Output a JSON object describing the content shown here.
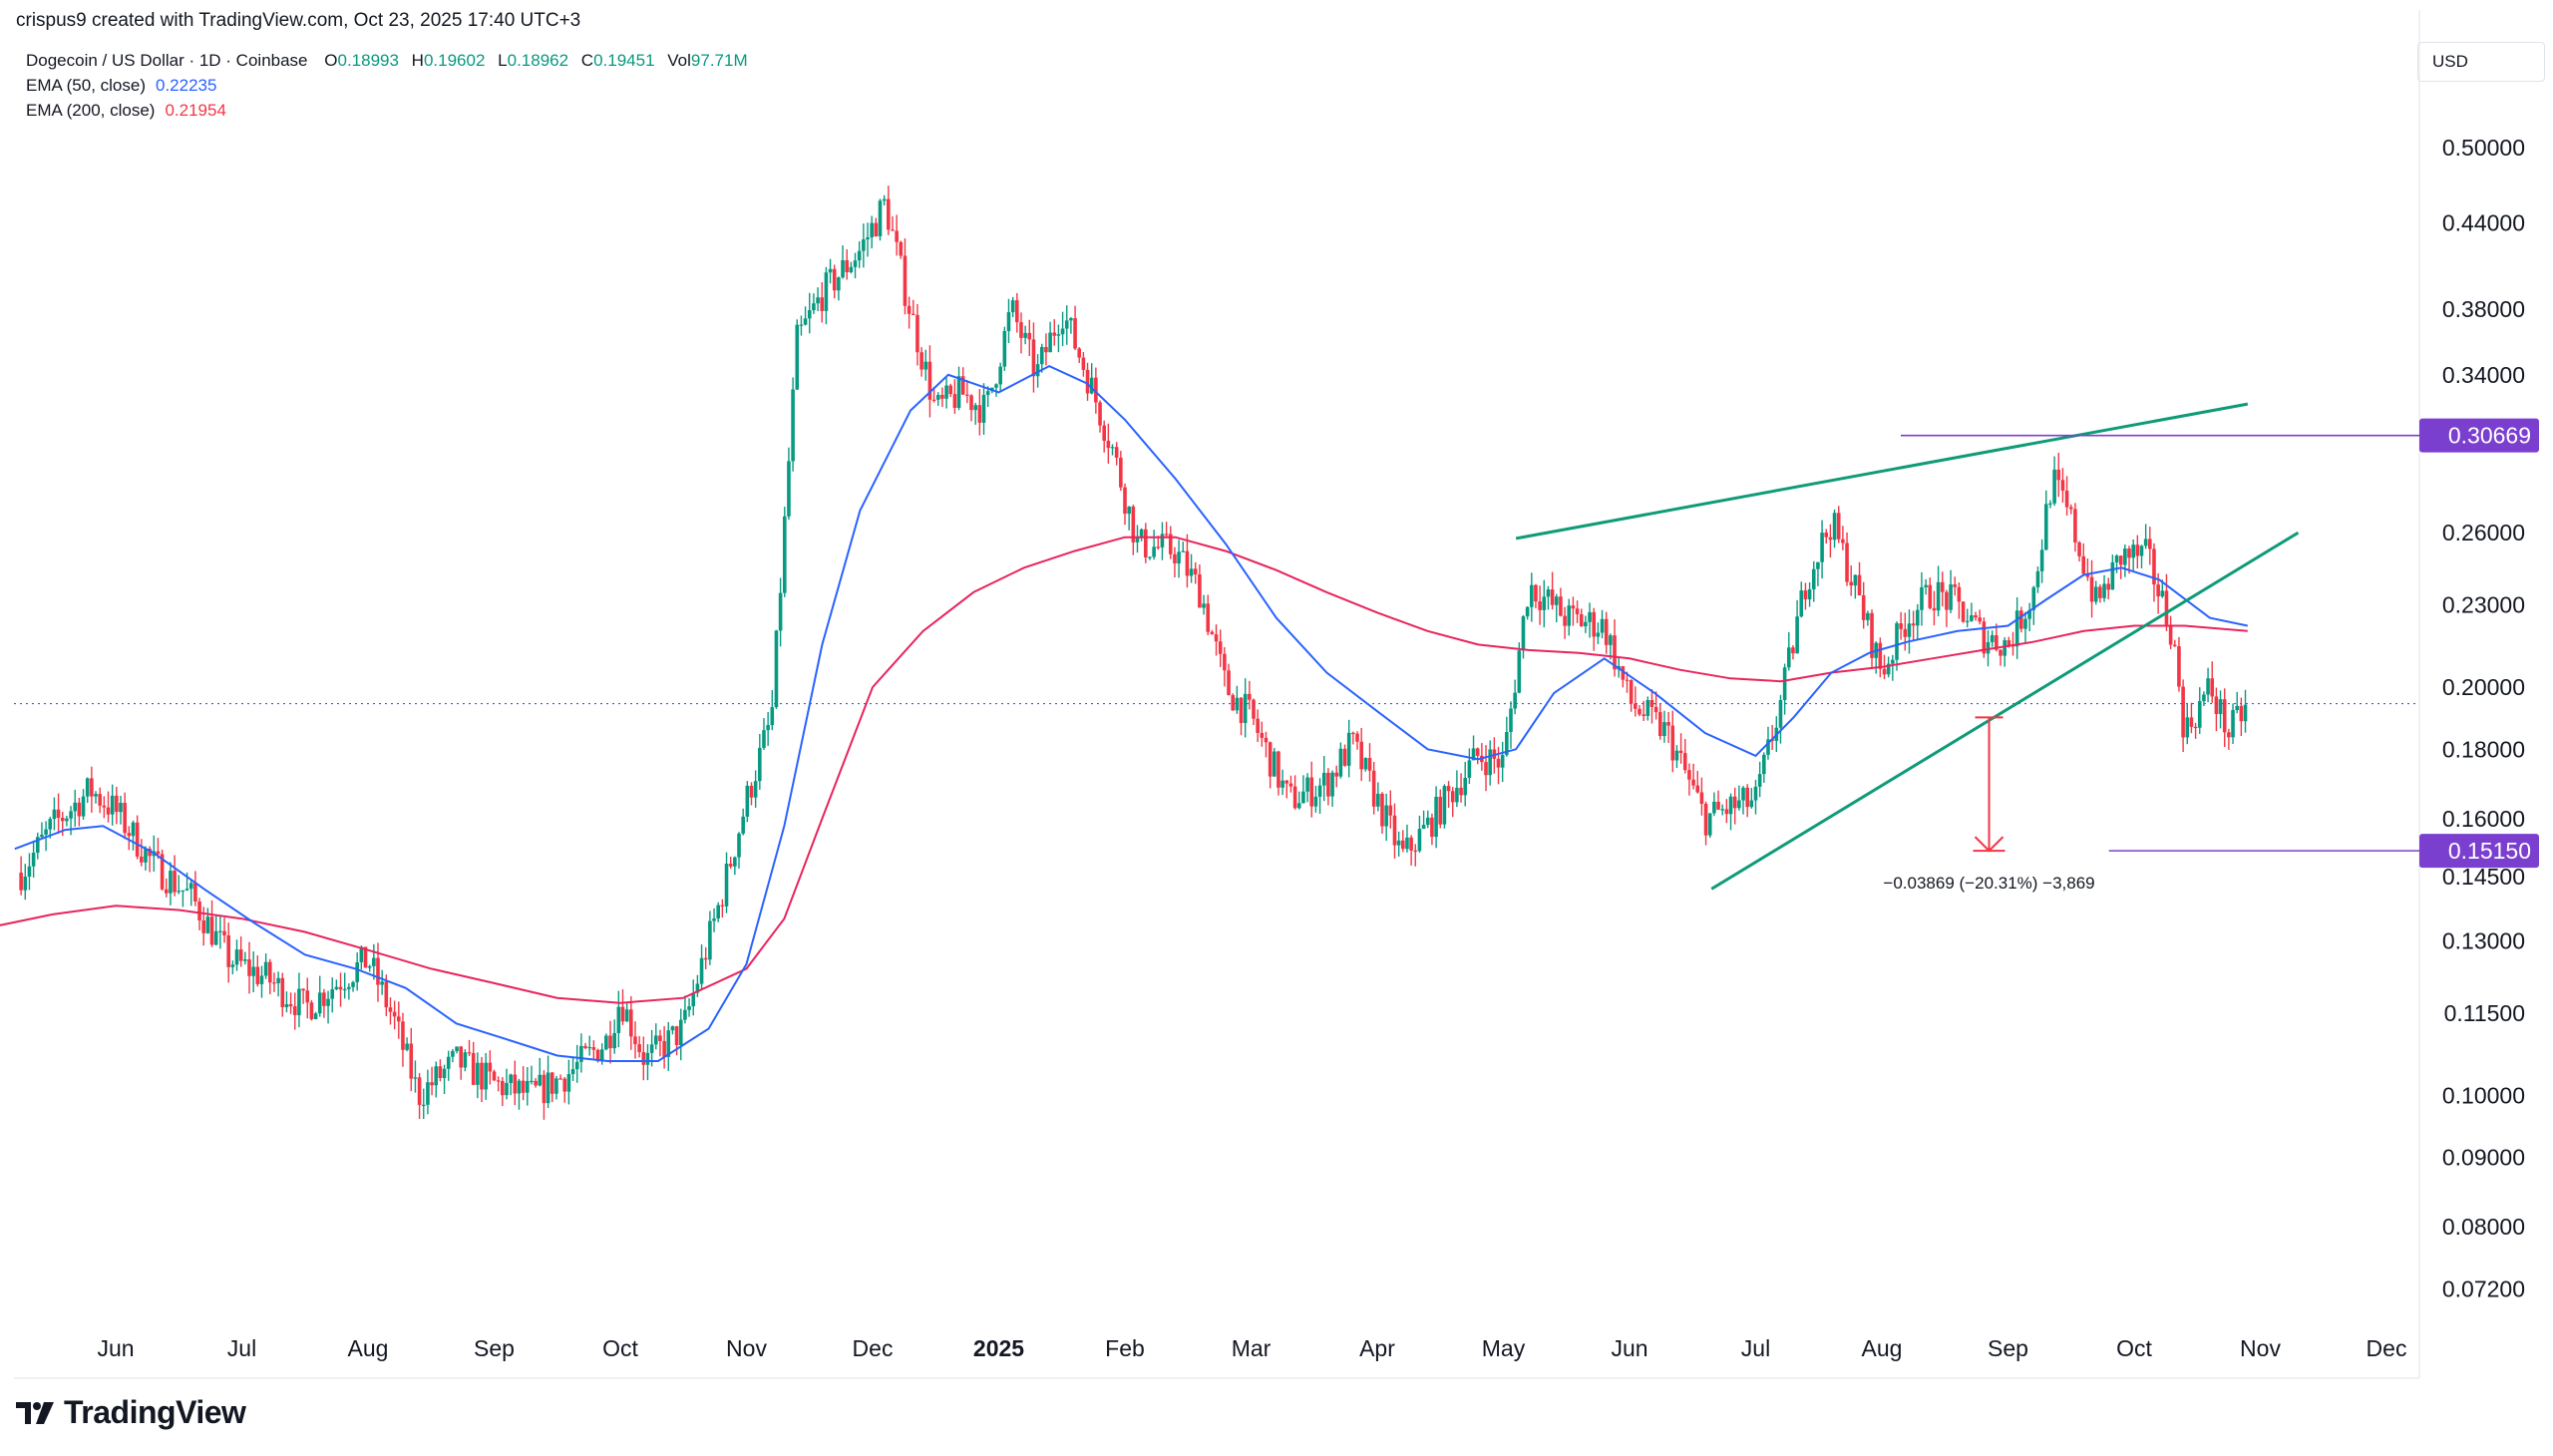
{
  "header": {
    "credit": "crispus9 created with TradingView.com, Oct 23, 2025 17:40 UTC+3"
  },
  "legend": {
    "symbol": "Dogecoin / US Dollar · 1D · Coinbase",
    "open_label": "O",
    "open": "0.18993",
    "high_label": "H",
    "high": "0.19602",
    "low_label": "L",
    "low": "0.18962",
    "close_label": "C",
    "close": "0.19451",
    "vol_label": "Vol",
    "vol": "97.71M",
    "ema50_label": "EMA (50, close)",
    "ema50_value": "0.22235",
    "ema200_label": "EMA (200, close)",
    "ema200_value": "0.21954"
  },
  "currency": "USD",
  "footer": {
    "brand": "TradingView"
  },
  "colors": {
    "up": "#089981",
    "down": "#f23645",
    "ema50": "#2962ff",
    "ema200": "#e8245c",
    "channel": "#0f9a78",
    "tag": "#7b3fcf",
    "measure": "#f23645"
  },
  "chart_data": {
    "type": "candlestick",
    "title": "Dogecoin / US Dollar · 1D · Coinbase",
    "y_scale": "log",
    "ylim": [
      0.066,
      0.55
    ],
    "y_ticks": [
      "0.50000",
      "0.44000",
      "0.38000",
      "0.34000",
      "0.26000",
      "0.23000",
      "0.20000",
      "0.18000",
      "0.16000",
      "0.14500",
      "0.13000",
      "0.11500",
      "0.10000",
      "0.09000",
      "0.08000",
      "0.07200"
    ],
    "x_ticks": [
      {
        "label": "Jun",
        "t": 2
      },
      {
        "label": "Jul",
        "t": 3
      },
      {
        "label": "Aug",
        "t": 4
      },
      {
        "label": "Sep",
        "t": 5
      },
      {
        "label": "Oct",
        "t": 6
      },
      {
        "label": "Nov",
        "t": 7
      },
      {
        "label": "Dec",
        "t": 8
      },
      {
        "label": "2025",
        "t": 9,
        "bold": true
      },
      {
        "label": "Feb",
        "t": 10
      },
      {
        "label": "Mar",
        "t": 11
      },
      {
        "label": "Apr",
        "t": 12
      },
      {
        "label": "May",
        "t": 13
      },
      {
        "label": "Jun",
        "t": 14
      },
      {
        "label": "Jul",
        "t": 15
      },
      {
        "label": "Aug",
        "t": 16
      },
      {
        "label": "Sep",
        "t": 17
      },
      {
        "label": "Oct",
        "t": 18
      },
      {
        "label": "Nov",
        "t": 19
      },
      {
        "label": "Dec",
        "t": 20
      }
    ],
    "close_anchors": [
      [
        1.25,
        0.146
      ],
      [
        1.5,
        0.158
      ],
      [
        1.8,
        0.168
      ],
      [
        2.0,
        0.162
      ],
      [
        2.3,
        0.148
      ],
      [
        2.6,
        0.14
      ],
      [
        2.9,
        0.126
      ],
      [
        3.2,
        0.122
      ],
      [
        3.5,
        0.116
      ],
      [
        3.8,
        0.122
      ],
      [
        4.0,
        0.126
      ],
      [
        4.2,
        0.114
      ],
      [
        4.4,
        0.1
      ],
      [
        4.7,
        0.106
      ],
      [
        5.0,
        0.102
      ],
      [
        5.3,
        0.1
      ],
      [
        5.6,
        0.104
      ],
      [
        5.9,
        0.11
      ],
      [
        6.0,
        0.118
      ],
      [
        6.2,
        0.106
      ],
      [
        6.5,
        0.112
      ],
      [
        6.8,
        0.14
      ],
      [
        7.0,
        0.165
      ],
      [
        7.2,
        0.19
      ],
      [
        7.4,
        0.36
      ],
      [
        7.6,
        0.39
      ],
      [
        7.9,
        0.42
      ],
      [
        8.1,
        0.455
      ],
      [
        8.25,
        0.395
      ],
      [
        8.5,
        0.32
      ],
      [
        8.7,
        0.33
      ],
      [
        8.9,
        0.32
      ],
      [
        9.1,
        0.38
      ],
      [
        9.3,
        0.34
      ],
      [
        9.5,
        0.38
      ],
      [
        9.7,
        0.34
      ],
      [
        9.9,
        0.3
      ],
      [
        10.1,
        0.255
      ],
      [
        10.4,
        0.252
      ],
      [
        10.6,
        0.235
      ],
      [
        10.8,
        0.2
      ],
      [
        11.0,
        0.19
      ],
      [
        11.3,
        0.165
      ],
      [
        11.6,
        0.17
      ],
      [
        11.8,
        0.182
      ],
      [
        12.0,
        0.165
      ],
      [
        12.2,
        0.15
      ],
      [
        12.4,
        0.158
      ],
      [
        12.6,
        0.168
      ],
      [
        12.8,
        0.178
      ],
      [
        13.0,
        0.176
      ],
      [
        13.2,
        0.238
      ],
      [
        13.5,
        0.225
      ],
      [
        13.8,
        0.222
      ],
      [
        14.0,
        0.195
      ],
      [
        14.3,
        0.185
      ],
      [
        14.6,
        0.16
      ],
      [
        14.8,
        0.163
      ],
      [
        15.0,
        0.165
      ],
      [
        15.2,
        0.195
      ],
      [
        15.4,
        0.24
      ],
      [
        15.6,
        0.265
      ],
      [
        15.8,
        0.235
      ],
      [
        16.0,
        0.205
      ],
      [
        16.2,
        0.225
      ],
      [
        16.4,
        0.235
      ],
      [
        16.6,
        0.23
      ],
      [
        16.8,
        0.218
      ],
      [
        17.0,
        0.215
      ],
      [
        17.2,
        0.235
      ],
      [
        17.35,
        0.285
      ],
      [
        17.5,
        0.265
      ],
      [
        17.7,
        0.23
      ],
      [
        17.9,
        0.25
      ],
      [
        18.1,
        0.25
      ],
      [
        18.3,
        0.22
      ],
      [
        18.4,
        0.185
      ],
      [
        18.6,
        0.2
      ],
      [
        18.75,
        0.185
      ],
      [
        18.9,
        0.194
      ]
    ],
    "ema50": [
      [
        1.2,
        0.152
      ],
      [
        1.6,
        0.157
      ],
      [
        1.9,
        0.158
      ],
      [
        2.3,
        0.151
      ],
      [
        2.7,
        0.142
      ],
      [
        3.1,
        0.134
      ],
      [
        3.5,
        0.127
      ],
      [
        3.9,
        0.124
      ],
      [
        4.3,
        0.12
      ],
      [
        4.7,
        0.113
      ],
      [
        5.1,
        0.11
      ],
      [
        5.5,
        0.107
      ],
      [
        5.9,
        0.106
      ],
      [
        6.3,
        0.106
      ],
      [
        6.7,
        0.112
      ],
      [
        7.0,
        0.125
      ],
      [
        7.3,
        0.158
      ],
      [
        7.6,
        0.215
      ],
      [
        7.9,
        0.27
      ],
      [
        8.3,
        0.32
      ],
      [
        8.6,
        0.34
      ],
      [
        9.0,
        0.33
      ],
      [
        9.4,
        0.345
      ],
      [
        9.7,
        0.335
      ],
      [
        10.0,
        0.315
      ],
      [
        10.4,
        0.285
      ],
      [
        10.8,
        0.255
      ],
      [
        11.2,
        0.225
      ],
      [
        11.6,
        0.205
      ],
      [
        12.0,
        0.192
      ],
      [
        12.4,
        0.18
      ],
      [
        12.8,
        0.177
      ],
      [
        13.1,
        0.18
      ],
      [
        13.4,
        0.198
      ],
      [
        13.8,
        0.21
      ],
      [
        14.2,
        0.198
      ],
      [
        14.6,
        0.185
      ],
      [
        15.0,
        0.178
      ],
      [
        15.3,
        0.19
      ],
      [
        15.6,
        0.205
      ],
      [
        15.9,
        0.212
      ],
      [
        16.2,
        0.216
      ],
      [
        16.6,
        0.22
      ],
      [
        17.0,
        0.222
      ],
      [
        17.3,
        0.232
      ],
      [
        17.6,
        0.242
      ],
      [
        17.9,
        0.245
      ],
      [
        18.2,
        0.24
      ],
      [
        18.6,
        0.225
      ],
      [
        18.9,
        0.222
      ]
    ],
    "ema200": [
      [
        1.0,
        0.133
      ],
      [
        1.5,
        0.136
      ],
      [
        2.0,
        0.138
      ],
      [
        2.5,
        0.137
      ],
      [
        3.0,
        0.135
      ],
      [
        3.5,
        0.132
      ],
      [
        4.0,
        0.128
      ],
      [
        4.5,
        0.124
      ],
      [
        5.0,
        0.121
      ],
      [
        5.5,
        0.118
      ],
      [
        6.0,
        0.117
      ],
      [
        6.5,
        0.118
      ],
      [
        7.0,
        0.124
      ],
      [
        7.3,
        0.135
      ],
      [
        7.6,
        0.16
      ],
      [
        8.0,
        0.2
      ],
      [
        8.4,
        0.22
      ],
      [
        8.8,
        0.235
      ],
      [
        9.2,
        0.245
      ],
      [
        9.6,
        0.252
      ],
      [
        10.0,
        0.258
      ],
      [
        10.4,
        0.258
      ],
      [
        10.8,
        0.252
      ],
      [
        11.2,
        0.244
      ],
      [
        11.6,
        0.235
      ],
      [
        12.0,
        0.227
      ],
      [
        12.4,
        0.22
      ],
      [
        12.8,
        0.215
      ],
      [
        13.2,
        0.213
      ],
      [
        13.6,
        0.212
      ],
      [
        14.0,
        0.21
      ],
      [
        14.4,
        0.206
      ],
      [
        14.8,
        0.203
      ],
      [
        15.2,
        0.202
      ],
      [
        15.6,
        0.205
      ],
      [
        16.0,
        0.207
      ],
      [
        16.4,
        0.21
      ],
      [
        16.8,
        0.213
      ],
      [
        17.2,
        0.216
      ],
      [
        17.6,
        0.22
      ],
      [
        18.0,
        0.222
      ],
      [
        18.4,
        0.222
      ],
      [
        18.9,
        0.22
      ]
    ],
    "upper_trendline": {
      "from": [
        13.1,
        0.2575
      ],
      "to": [
        18.9,
        0.3235
      ]
    },
    "lower_trendline": {
      "from": [
        14.65,
        0.142
      ],
      "to": [
        19.3,
        0.26
      ]
    },
    "resistance": {
      "value": 0.30669,
      "label": "0.30669",
      "from_t": 16.15
    },
    "support": {
      "value": 0.1515,
      "label": "0.15150",
      "from_t": 17.8
    },
    "current_price": 0.19451,
    "measure": {
      "t": 16.85,
      "from": 0.19,
      "to": 0.1515,
      "label": "−0.03869 (−20.31%) −3,869"
    }
  }
}
